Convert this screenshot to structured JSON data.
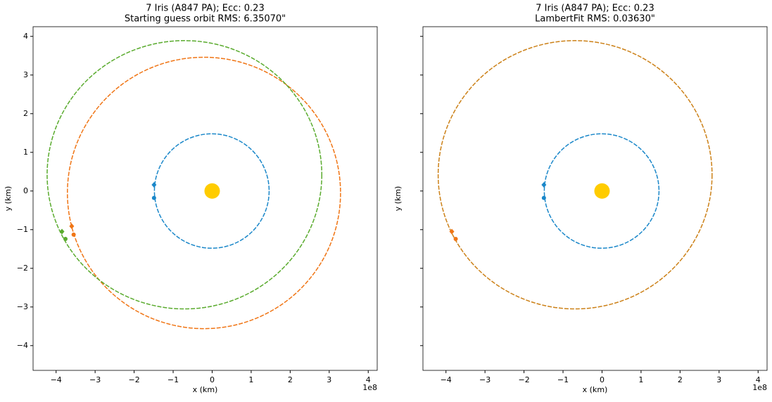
{
  "chart_data": [
    {
      "type": "orbit",
      "title": "7 Iris (A847 PA); Ecc: 0.23",
      "subtitle": "Starting guess orbit RMS: 6.35070\"",
      "xlabel": "x (km)",
      "ylabel": "y (km)",
      "x_offset_text": "1e8",
      "xlim": [
        -4.59,
        4.23
      ],
      "ylim": [
        -4.64,
        4.25
      ],
      "xticks": [
        {
          "value": -4,
          "label": "−4"
        },
        {
          "value": -3,
          "label": "−3"
        },
        {
          "value": -2,
          "label": "−2"
        },
        {
          "value": -1,
          "label": "−1"
        },
        0,
        1,
        2,
        3,
        4
      ],
      "yticks": [
        {
          "value": -4,
          "label": "−4"
        },
        {
          "value": -3,
          "label": "−3"
        },
        {
          "value": -2,
          "label": "−2"
        },
        {
          "value": -1,
          "label": "−1"
        },
        0,
        1,
        2,
        3,
        4
      ],
      "show_ytick_labels": true,
      "orbits": [
        {
          "color": "#1a87c9",
          "center": [
            -0.01,
            0.0
          ],
          "radii": [
            1.47,
            1.48
          ]
        },
        {
          "color": "#f07515",
          "center": [
            -0.21,
            -0.05
          ],
          "radii": [
            3.5,
            3.51
          ]
        },
        {
          "color": "#5aab2e",
          "center": [
            -0.71,
            0.42
          ],
          "radii": [
            3.52,
            3.47
          ]
        }
      ],
      "points": [
        {
          "color": "#1a87c9",
          "marker": "diamond",
          "x": -1.49,
          "y": 0.16
        },
        {
          "color": "#1a87c9",
          "marker": "circle",
          "x": -1.49,
          "y": -0.18
        },
        {
          "color": "#f07515",
          "marker": "diamond",
          "x": -3.6,
          "y": -0.91
        },
        {
          "color": "#f07515",
          "marker": "circle",
          "x": -3.55,
          "y": -1.13
        },
        {
          "color": "#5aab2e",
          "marker": "diamond",
          "x": -3.85,
          "y": -1.05
        },
        {
          "color": "#5aab2e",
          "marker": "circle",
          "x": -3.76,
          "y": -1.24
        }
      ],
      "sun": {
        "color": "#ffcc00",
        "x": 0,
        "y": 0
      }
    },
    {
      "type": "orbit",
      "title": "7 Iris (A847 PA); Ecc: 0.23",
      "subtitle": "LambertFit RMS: 0.03630\"",
      "xlabel": "x (km)",
      "ylabel": "y (km)",
      "x_offset_text": "1e8",
      "xlim": [
        -4.59,
        4.23
      ],
      "ylim": [
        -4.64,
        4.25
      ],
      "xticks": [
        {
          "value": -4,
          "label": "−4"
        },
        {
          "value": -3,
          "label": "−3"
        },
        {
          "value": -2,
          "label": "−2"
        },
        {
          "value": -1,
          "label": "−1"
        },
        0,
        1,
        2,
        3,
        4
      ],
      "yticks": [
        -4,
        -3,
        -2,
        -1,
        0,
        1,
        2,
        3,
        4
      ],
      "show_ytick_labels": false,
      "orbits": [
        {
          "color": "#1a87c9",
          "center": [
            -0.01,
            0.0
          ],
          "radii": [
            1.47,
            1.48
          ]
        },
        {
          "color": "#cc8118",
          "center": [
            -0.69,
            0.42
          ],
          "radii": [
            3.51,
            3.47
          ]
        }
      ],
      "points": [
        {
          "color": "#1a87c9",
          "marker": "diamond",
          "x": -1.49,
          "y": 0.16
        },
        {
          "color": "#1a87c9",
          "marker": "circle",
          "x": -1.49,
          "y": -0.18
        },
        {
          "color": "#f07515",
          "marker": "diamond",
          "x": -3.85,
          "y": -1.05
        },
        {
          "color": "#f07515",
          "marker": "circle",
          "x": -3.75,
          "y": -1.24
        }
      ],
      "sun": {
        "color": "#ffcc00",
        "x": 0,
        "y": 0
      }
    }
  ]
}
